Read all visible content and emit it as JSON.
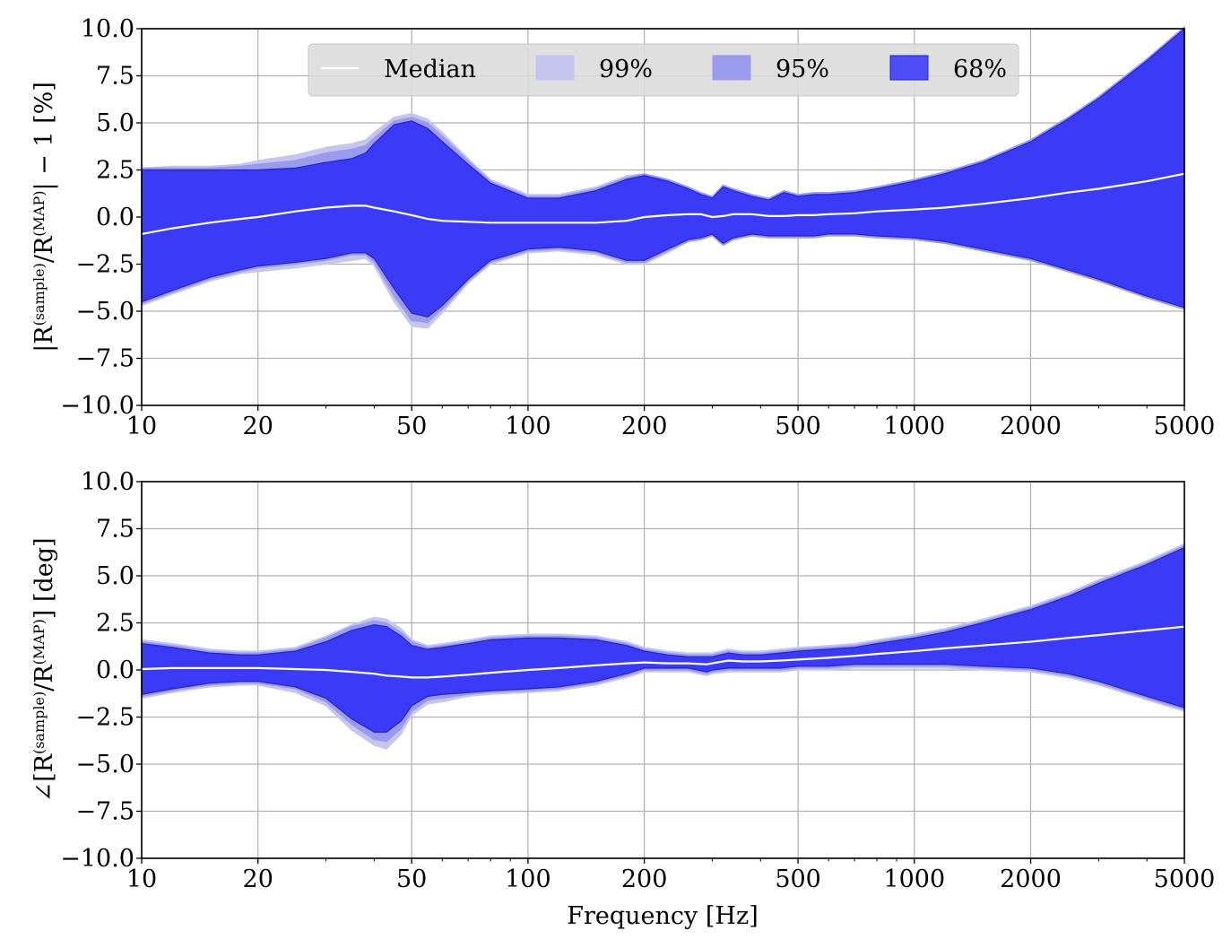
{
  "chart_data": [
    {
      "type": "area",
      "panel": "top",
      "ylabel": "|R(sample)/R(MAP)| − 1 [%]",
      "ylabel_parts": {
        "pre": "|R",
        "sup1": "(sample)",
        "mid": "/R",
        "sup2": "(MAP)",
        "post": "| − 1 [%]"
      },
      "xlabel": "",
      "xscale": "log",
      "xlim": [
        10,
        5000
      ],
      "ylim": [
        -10.0,
        10.0
      ],
      "xticks": [
        10,
        20,
        50,
        100,
        200,
        500,
        1000,
        2000,
        5000
      ],
      "xtick_labels": [
        "10",
        "20",
        "50",
        "100",
        "200",
        "500",
        "1000",
        "2000",
        "5000"
      ],
      "yticks": [
        -10.0,
        -7.5,
        -5.0,
        -2.5,
        0.0,
        2.5,
        5.0,
        7.5,
        10.0
      ],
      "ytick_labels": [
        "−10.0",
        "−7.5",
        "−5.0",
        "−2.5",
        "0.0",
        "2.5",
        "5.0",
        "7.5",
        "10.0"
      ],
      "grid": true,
      "legend": {
        "placement": "top-center",
        "entries": [
          {
            "label": "Median",
            "kind": "line",
            "color": "#ffffff"
          },
          {
            "label": "99%",
            "kind": "patch",
            "color": "#c5c5ee"
          },
          {
            "label": "95%",
            "kind": "patch",
            "color": "#9a9aef"
          },
          {
            "label": "68%",
            "kind": "patch",
            "color": "#4d4df5"
          }
        ]
      },
      "x": [
        10,
        12,
        15,
        18,
        20,
        25,
        30,
        35,
        38,
        40,
        45,
        50,
        55,
        60,
        70,
        80,
        100,
        120,
        150,
        180,
        200,
        230,
        260,
        280,
        300,
        320,
        340,
        380,
        420,
        460,
        500,
        550,
        600,
        700,
        800,
        1000,
        1200,
        1500,
        2000,
        2500,
        3000,
        4000,
        5000
      ],
      "series": [
        {
          "name": "Median",
          "values": [
            -0.9,
            -0.6,
            -0.3,
            -0.1,
            0.0,
            0.3,
            0.5,
            0.6,
            0.6,
            0.5,
            0.3,
            0.1,
            -0.1,
            -0.2,
            -0.25,
            -0.3,
            -0.3,
            -0.3,
            -0.3,
            -0.2,
            0.0,
            0.1,
            0.15,
            0.15,
            0.0,
            0.05,
            0.15,
            0.15,
            0.05,
            0.05,
            0.1,
            0.1,
            0.15,
            0.2,
            0.3,
            0.4,
            0.5,
            0.7,
            1.0,
            1.3,
            1.5,
            1.9,
            2.3
          ]
        },
        {
          "name": "68% upper",
          "values": [
            2.5,
            2.5,
            2.5,
            2.5,
            2.5,
            2.6,
            2.9,
            3.1,
            3.4,
            3.9,
            4.9,
            5.1,
            4.7,
            4.0,
            2.8,
            1.8,
            1.0,
            1.0,
            1.4,
            2.0,
            2.2,
            1.9,
            1.5,
            1.2,
            1.0,
            1.6,
            1.4,
            1.1,
            0.9,
            1.3,
            1.1,
            1.2,
            1.2,
            1.3,
            1.5,
            1.9,
            2.3,
            2.9,
            4.0,
            5.2,
            6.3,
            8.3,
            10.0
          ]
        },
        {
          "name": "68% lower",
          "values": [
            -4.5,
            -3.9,
            -3.2,
            -2.8,
            -2.6,
            -2.4,
            -2.2,
            -1.9,
            -1.9,
            -2.2,
            -3.8,
            -5.1,
            -5.3,
            -4.7,
            -3.3,
            -2.3,
            -1.7,
            -1.6,
            -1.8,
            -2.3,
            -2.3,
            -1.7,
            -1.2,
            -1.1,
            -0.9,
            -1.4,
            -1.1,
            -0.9,
            -1.0,
            -1.0,
            -1.0,
            -1.0,
            -0.9,
            -0.9,
            -1.0,
            -1.1,
            -1.3,
            -1.7,
            -2.2,
            -2.8,
            -3.3,
            -4.2,
            -4.8
          ]
        },
        {
          "name": "95% upper",
          "values": [
            2.6,
            2.6,
            2.6,
            2.7,
            2.8,
            3.0,
            3.4,
            3.6,
            3.8,
            4.2,
            5.1,
            5.3,
            5.0,
            4.3,
            3.0,
            1.9,
            1.1,
            1.1,
            1.5,
            2.1,
            2.3,
            2.0,
            1.6,
            1.3,
            1.1,
            1.7,
            1.5,
            1.2,
            1.0,
            1.4,
            1.2,
            1.3,
            1.3,
            1.4,
            1.6,
            2.0,
            2.4,
            3.0,
            4.1,
            5.3,
            6.4,
            8.4,
            10.1
          ]
        },
        {
          "name": "95% lower",
          "values": [
            -4.6,
            -4.0,
            -3.3,
            -2.9,
            -2.7,
            -2.5,
            -2.3,
            -2.0,
            -2.0,
            -2.4,
            -4.2,
            -5.5,
            -5.6,
            -4.9,
            -3.4,
            -2.4,
            -1.8,
            -1.7,
            -1.9,
            -2.4,
            -2.4,
            -1.8,
            -1.3,
            -1.2,
            -1.0,
            -1.5,
            -1.2,
            -1.0,
            -1.1,
            -1.1,
            -1.1,
            -1.1,
            -1.0,
            -1.0,
            -1.1,
            -1.2,
            -1.4,
            -1.8,
            -2.3,
            -2.9,
            -3.4,
            -4.3,
            -4.9
          ]
        },
        {
          "name": "99% upper",
          "values": [
            2.6,
            2.7,
            2.7,
            2.8,
            3.0,
            3.3,
            3.7,
            3.9,
            4.1,
            4.5,
            5.3,
            5.5,
            5.2,
            4.5,
            3.1,
            2.0,
            1.2,
            1.2,
            1.6,
            2.2,
            2.3,
            2.0,
            1.6,
            1.3,
            1.1,
            1.7,
            1.5,
            1.2,
            1.0,
            1.4,
            1.2,
            1.3,
            1.3,
            1.4,
            1.6,
            2.0,
            2.4,
            3.0,
            4.1,
            5.3,
            6.4,
            8.4,
            10.1
          ]
        },
        {
          "name": "99% lower",
          "values": [
            -4.7,
            -4.1,
            -3.4,
            -3.0,
            -2.9,
            -2.7,
            -2.5,
            -2.3,
            -2.2,
            -2.6,
            -4.5,
            -5.8,
            -5.9,
            -5.1,
            -3.5,
            -2.5,
            -1.9,
            -1.8,
            -2.0,
            -2.5,
            -2.5,
            -1.9,
            -1.3,
            -1.2,
            -1.0,
            -1.5,
            -1.2,
            -1.0,
            -1.1,
            -1.1,
            -1.1,
            -1.1,
            -1.0,
            -1.0,
            -1.1,
            -1.2,
            -1.4,
            -1.8,
            -2.3,
            -2.9,
            -3.4,
            -4.3,
            -4.9
          ]
        }
      ]
    },
    {
      "type": "area",
      "panel": "bottom",
      "ylabel": "∠[R(sample)/R(MAP)] [deg]",
      "ylabel_parts": {
        "pre": "∠[R",
        "sup1": "(sample)",
        "mid": "/R",
        "sup2": "(MAP)",
        "post": "] [deg]"
      },
      "xlabel": "Frequency [Hz]",
      "xscale": "log",
      "xlim": [
        10,
        5000
      ],
      "ylim": [
        -10.0,
        10.0
      ],
      "xticks": [
        10,
        20,
        50,
        100,
        200,
        500,
        1000,
        2000,
        5000
      ],
      "xtick_labels": [
        "10",
        "20",
        "50",
        "100",
        "200",
        "500",
        "1000",
        "2000",
        "5000"
      ],
      "yticks": [
        -10.0,
        -7.5,
        -5.0,
        -2.5,
        0.0,
        2.5,
        5.0,
        7.5,
        10.0
      ],
      "ytick_labels": [
        "−10.0",
        "−7.5",
        "−5.0",
        "−2.5",
        "0.0",
        "2.5",
        "5.0",
        "7.5",
        "10.0"
      ],
      "grid": true,
      "x": [
        10,
        12,
        15,
        18,
        20,
        25,
        30,
        35,
        40,
        43,
        47,
        50,
        55,
        60,
        70,
        80,
        100,
        120,
        150,
        180,
        200,
        230,
        260,
        290,
        300,
        330,
        360,
        400,
        450,
        500,
        600,
        700,
        800,
        1000,
        1200,
        1500,
        2000,
        2500,
        3000,
        4000,
        5000
      ],
      "series": [
        {
          "name": "Median",
          "values": [
            0.05,
            0.1,
            0.1,
            0.1,
            0.1,
            0.05,
            0.0,
            -0.1,
            -0.2,
            -0.3,
            -0.35,
            -0.4,
            -0.4,
            -0.35,
            -0.25,
            -0.15,
            0.0,
            0.1,
            0.25,
            0.35,
            0.4,
            0.35,
            0.35,
            0.3,
            0.35,
            0.5,
            0.45,
            0.45,
            0.5,
            0.55,
            0.65,
            0.75,
            0.85,
            1.0,
            1.15,
            1.3,
            1.5,
            1.7,
            1.85,
            2.1,
            2.3
          ]
        },
        {
          "name": "68% upper",
          "values": [
            1.4,
            1.2,
            0.9,
            0.8,
            0.8,
            1.0,
            1.5,
            2.1,
            2.4,
            2.3,
            1.8,
            1.3,
            1.1,
            1.2,
            1.4,
            1.6,
            1.7,
            1.7,
            1.6,
            1.3,
            1.0,
            0.8,
            0.7,
            0.7,
            0.7,
            0.9,
            0.8,
            0.8,
            0.9,
            1.0,
            1.1,
            1.2,
            1.4,
            1.7,
            2.0,
            2.5,
            3.2,
            3.9,
            4.6,
            5.6,
            6.5
          ]
        },
        {
          "name": "68% lower",
          "values": [
            -1.3,
            -1.0,
            -0.7,
            -0.6,
            -0.6,
            -0.9,
            -1.5,
            -2.6,
            -3.3,
            -3.3,
            -2.7,
            -1.9,
            -1.4,
            -1.3,
            -1.2,
            -1.1,
            -1.0,
            -0.9,
            -0.6,
            -0.2,
            0.1,
            0.1,
            0.1,
            -0.1,
            0.0,
            0.1,
            0.1,
            0.1,
            0.1,
            0.2,
            0.2,
            0.3,
            0.3,
            0.3,
            0.3,
            0.2,
            0.1,
            -0.2,
            -0.6,
            -1.4,
            -2.0
          ]
        },
        {
          "name": "95% upper",
          "values": [
            1.5,
            1.3,
            1.0,
            0.9,
            0.9,
            1.1,
            1.7,
            2.3,
            2.6,
            2.5,
            2.0,
            1.5,
            1.2,
            1.3,
            1.5,
            1.7,
            1.8,
            1.8,
            1.7,
            1.4,
            1.1,
            0.9,
            0.8,
            0.8,
            0.8,
            1.0,
            0.9,
            0.9,
            1.0,
            1.1,
            1.2,
            1.3,
            1.5,
            1.8,
            2.1,
            2.6,
            3.3,
            4.0,
            4.7,
            5.7,
            6.6
          ]
        },
        {
          "name": "95% lower",
          "values": [
            -1.4,
            -1.1,
            -0.8,
            -0.7,
            -0.7,
            -1.0,
            -1.7,
            -2.9,
            -3.7,
            -3.8,
            -3.1,
            -2.2,
            -1.6,
            -1.5,
            -1.3,
            -1.2,
            -1.1,
            -1.0,
            -0.7,
            -0.3,
            0.0,
            0.0,
            0.0,
            -0.2,
            -0.1,
            0.0,
            0.0,
            0.0,
            0.0,
            0.1,
            0.1,
            0.2,
            0.2,
            0.2,
            0.2,
            0.1,
            0.0,
            -0.3,
            -0.7,
            -1.5,
            -2.1
          ]
        },
        {
          "name": "99% upper",
          "values": [
            1.6,
            1.4,
            1.1,
            1.0,
            1.0,
            1.2,
            1.8,
            2.4,
            2.8,
            2.7,
            2.2,
            1.6,
            1.3,
            1.4,
            1.6,
            1.8,
            1.9,
            1.9,
            1.8,
            1.5,
            1.2,
            1.0,
            0.9,
            0.9,
            0.9,
            1.1,
            1.0,
            1.0,
            1.1,
            1.2,
            1.3,
            1.4,
            1.6,
            1.9,
            2.2,
            2.7,
            3.4,
            4.1,
            4.8,
            5.8,
            6.7
          ]
        },
        {
          "name": "99% lower",
          "values": [
            -1.5,
            -1.2,
            -0.9,
            -0.8,
            -0.8,
            -1.2,
            -1.9,
            -3.2,
            -4.0,
            -4.2,
            -3.4,
            -2.4,
            -1.8,
            -1.7,
            -1.4,
            -1.3,
            -1.2,
            -1.1,
            -0.8,
            -0.4,
            -0.1,
            -0.1,
            -0.1,
            -0.3,
            -0.2,
            -0.1,
            -0.1,
            -0.1,
            -0.1,
            0.0,
            0.0,
            0.1,
            0.1,
            0.1,
            0.1,
            0.0,
            -0.1,
            -0.4,
            -0.8,
            -1.6,
            -2.2
          ]
        }
      ]
    }
  ],
  "colors": {
    "band_99": "#c5c5ee",
    "band_95": "#9a9aef",
    "band_68": "#3b3bf7",
    "band_68_edge": "#2323c8",
    "median": "#ffffff",
    "grid": "#b0b0b0",
    "legend_bg": "#dcdcdc"
  }
}
